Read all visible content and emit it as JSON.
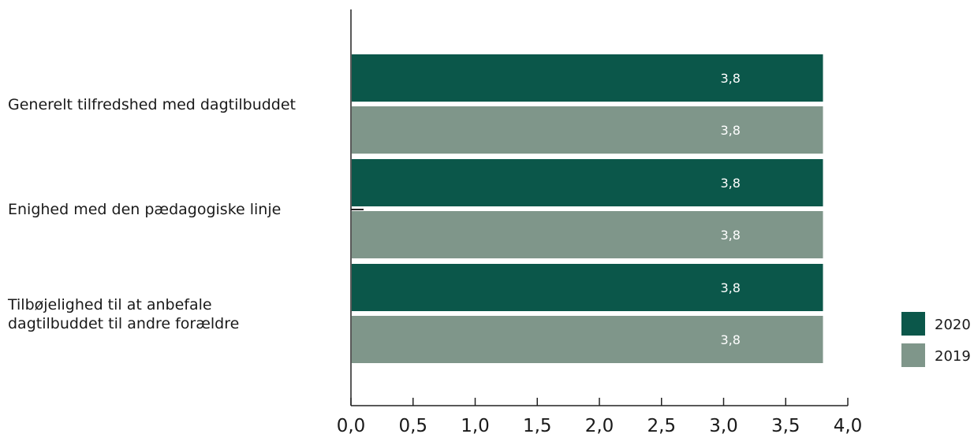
{
  "chart_data": {
    "type": "bar",
    "orientation": "horizontal",
    "categories": [
      [
        "Generelt tilfredshed med dagtilbuddet"
      ],
      [
        "Enighed med den pædagogiske linje"
      ],
      [
        "Tilbøjelighed til at anbefale",
        "dagtilbuddet til andre forældre"
      ]
    ],
    "series": [
      {
        "name": "2020",
        "color": "#0b574a",
        "values": [
          3.8,
          3.8,
          3.8
        ],
        "labels": [
          "3,8",
          "3,8",
          "3,8"
        ]
      },
      {
        "name": "2019",
        "color": "#7f968a",
        "values": [
          3.8,
          3.8,
          3.8
        ],
        "labels": [
          "3,8",
          "3,8",
          "3,8"
        ]
      }
    ],
    "xlim": [
      0,
      4
    ],
    "ticks": [
      0,
      0.5,
      1,
      1.5,
      2,
      2.5,
      3,
      3.5,
      4
    ],
    "tick_labels": [
      "0,0",
      "0,5",
      "1,0",
      "1,5",
      "2,0",
      "2,5",
      "3,0",
      "3,5",
      "4,0"
    ],
    "grid": false,
    "legend_position": "bottom-right"
  }
}
